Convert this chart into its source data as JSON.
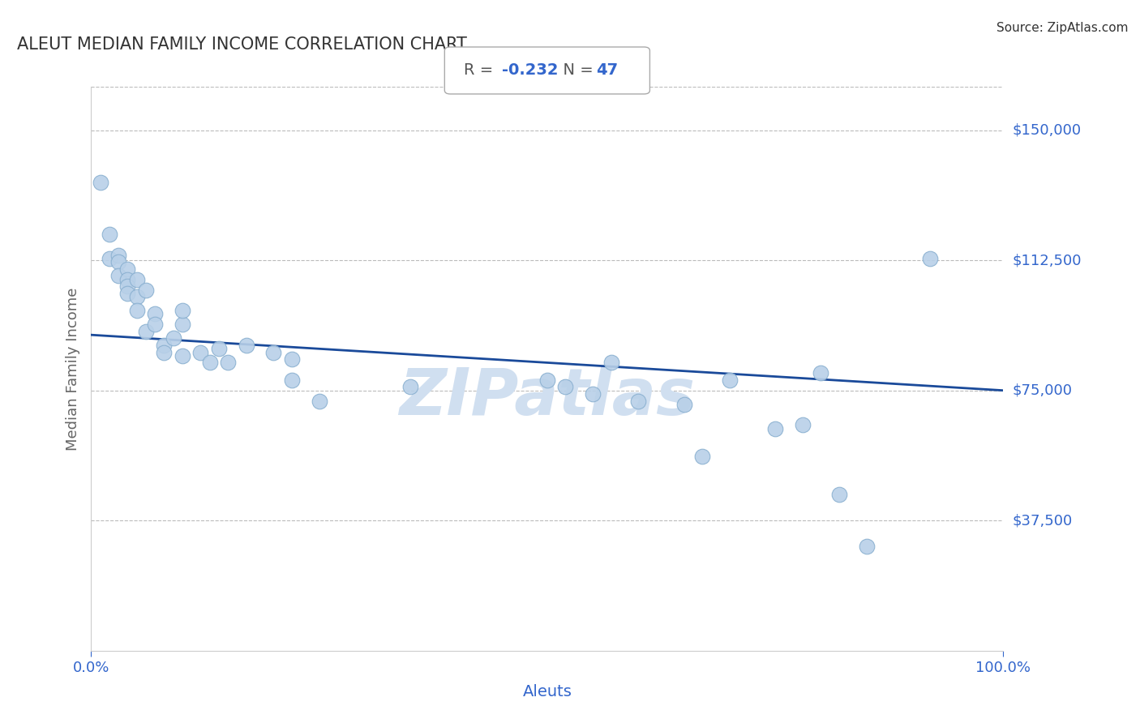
{
  "title": "ALEUT MEDIAN FAMILY INCOME CORRELATION CHART",
  "source_text": "Source: ZipAtlas.com",
  "xlabel": "Aleuts",
  "ylabel": "Median Family Income",
  "R": -0.232,
  "N": 47,
  "xlim": [
    0,
    1.0
  ],
  "ylim": [
    0,
    162500
  ],
  "yticks": [
    37500,
    75000,
    112500,
    150000
  ],
  "ytick_labels": [
    "$37,500",
    "$75,000",
    "$112,500",
    "$150,000"
  ],
  "xtick_labels": [
    "0.0%",
    "100.0%"
  ],
  "bg_color": "#ffffff",
  "scatter_color": "#b8d0e8",
  "scatter_edge_color": "#8ab0d0",
  "line_color": "#1a4a9a",
  "grid_color": "#bbbbbb",
  "title_color": "#333333",
  "axis_label_color": "#3366cc",
  "watermark_color": "#d0dff0",
  "scatter_x": [
    0.01,
    0.02,
    0.02,
    0.03,
    0.03,
    0.03,
    0.04,
    0.04,
    0.04,
    0.04,
    0.05,
    0.05,
    0.05,
    0.06,
    0.06,
    0.07,
    0.07,
    0.08,
    0.08,
    0.09,
    0.1,
    0.1,
    0.1,
    0.12,
    0.13,
    0.14,
    0.15,
    0.17,
    0.2,
    0.22,
    0.22,
    0.25,
    0.35,
    0.5,
    0.52,
    0.55,
    0.57,
    0.6,
    0.65,
    0.67,
    0.7,
    0.75,
    0.78,
    0.8,
    0.82,
    0.85,
    0.92
  ],
  "scatter_y": [
    135000,
    120000,
    113000,
    114000,
    112000,
    108000,
    110000,
    107000,
    105000,
    103000,
    107000,
    102000,
    98000,
    104000,
    92000,
    97000,
    94000,
    88000,
    86000,
    90000,
    85000,
    94000,
    98000,
    86000,
    83000,
    87000,
    83000,
    88000,
    86000,
    78000,
    84000,
    72000,
    76000,
    78000,
    76000,
    74000,
    83000,
    72000,
    71000,
    56000,
    78000,
    64000,
    65000,
    80000,
    45000,
    30000,
    113000
  ],
  "line_x0": 0.0,
  "line_x1": 1.0,
  "line_y0": 91000,
  "line_y1": 75000
}
